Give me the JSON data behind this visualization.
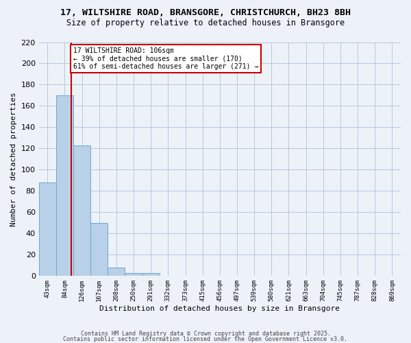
{
  "title_line1": "17, WILTSHIRE ROAD, BRANSGORE, CHRISTCHURCH, BH23 8BH",
  "title_line2": "Size of property relative to detached houses in Bransgore",
  "xlabel": "Distribution of detached houses by size in Bransgore",
  "ylabel": "Number of detached properties",
  "bins": [
    "43sqm",
    "84sqm",
    "126sqm",
    "167sqm",
    "208sqm",
    "250sqm",
    "291sqm",
    "332sqm",
    "373sqm",
    "415sqm",
    "456sqm",
    "497sqm",
    "539sqm",
    "580sqm",
    "621sqm",
    "663sqm",
    "704sqm",
    "745sqm",
    "787sqm",
    "828sqm",
    "869sqm"
  ],
  "bar_values": [
    88,
    170,
    123,
    50,
    8,
    3,
    3,
    0,
    0,
    0,
    0,
    0,
    0,
    0,
    0,
    0,
    0,
    0,
    0,
    0,
    0
  ],
  "bar_color": "#b8d0e8",
  "bar_edge_color": "#6ea8d0",
  "vline_pos": 1.39,
  "vline_color": "#cc0000",
  "annotation_text": "17 WILTSHIRE ROAD: 106sqm\n← 39% of detached houses are smaller (170)\n61% of semi-detached houses are larger (271) →",
  "annotation_box_color": "#ffffff",
  "annotation_box_edge": "#cc0000",
  "ylim": [
    0,
    220
  ],
  "yticks": [
    0,
    20,
    40,
    60,
    80,
    100,
    120,
    140,
    160,
    180,
    200,
    220
  ],
  "footer_line1": "Contains HM Land Registry data © Crown copyright and database right 2025.",
  "footer_line2": "Contains public sector information licensed under the Open Government Licence v3.0.",
  "bg_color": "#edf2f9",
  "plot_bg_color": "#edf2f9"
}
